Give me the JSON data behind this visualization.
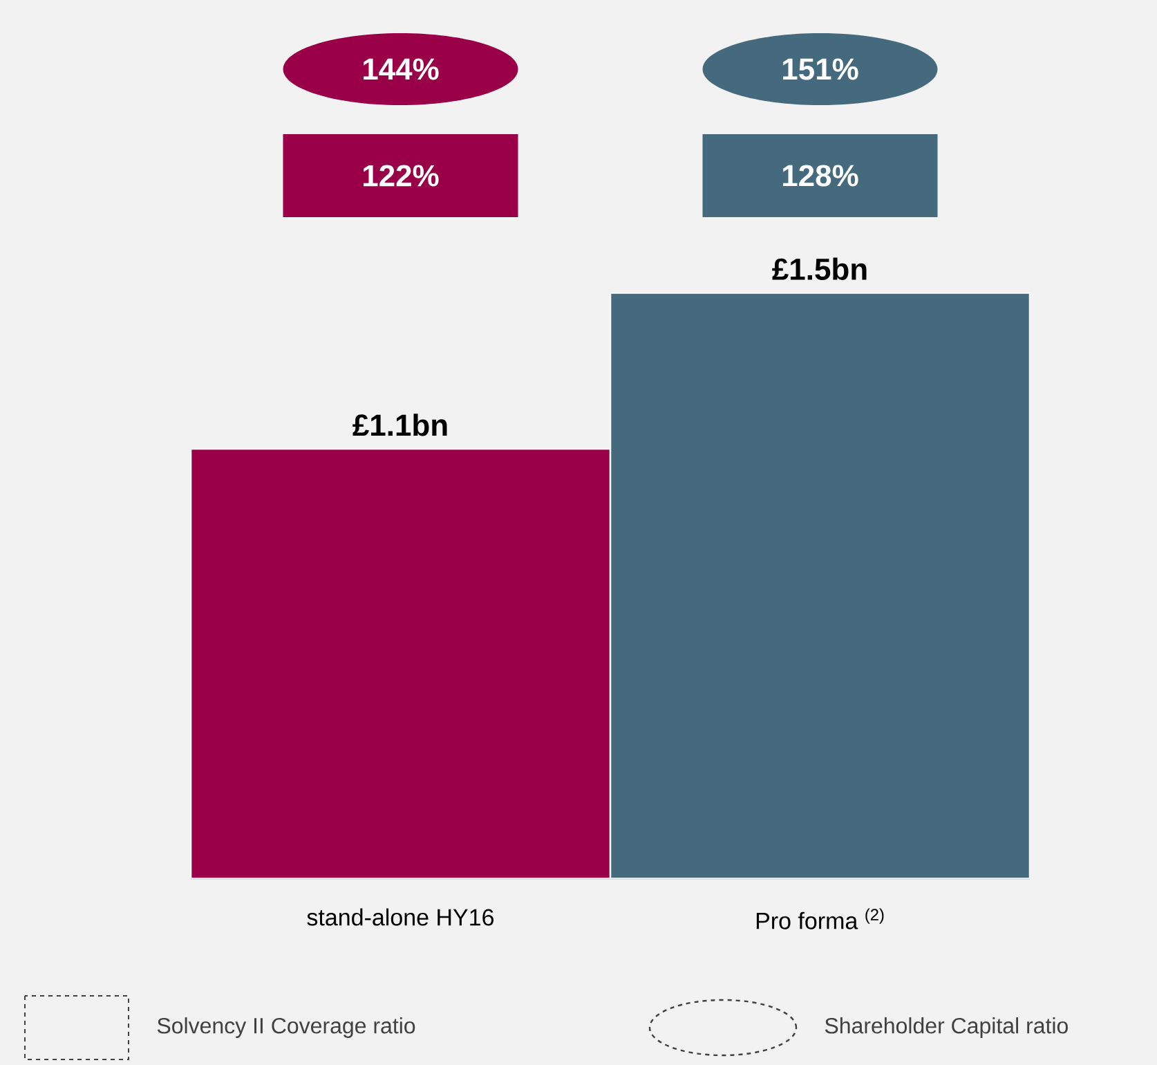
{
  "chart_data": {
    "type": "bar",
    "categories": [
      "stand-alone HY16",
      "Pro forma $^{(2)}$"
    ],
    "values": [
      1.1,
      1.5
    ],
    "colors": [
      "#990047",
      "#466a7d"
    ],
    "value_labels": [
      "£1.1bn",
      "£1.5bn"
    ],
    "annotations": [
      "144%",
      "122%",
      "151%",
      "128%",
      "Solvency II Coverage ratio",
      "Shareholder Capital ratio"
    ]
  }
}
